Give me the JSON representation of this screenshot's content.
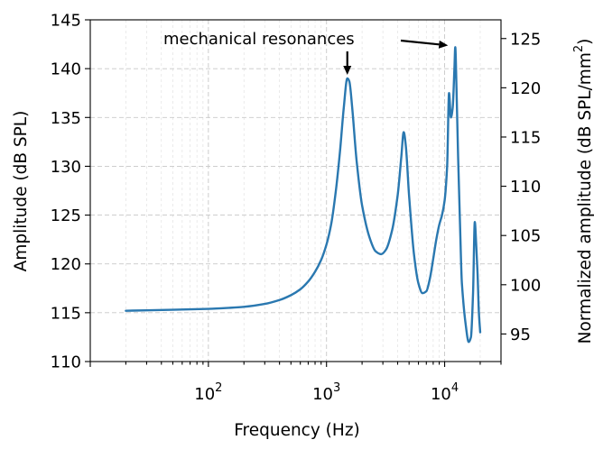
{
  "chart_data": {
    "type": "line",
    "title": "",
    "xlabel": "Frequency (Hz)",
    "ylabel": "Amplitude (dB SPL)",
    "ylabel_right_main": "Normalized amplitude (dB SPL/mm",
    "ylabel_right_sup": "2",
    "ylabel_right_close": ")",
    "x_scale": "log",
    "xlim": [
      10,
      30000
    ],
    "ylim": [
      110,
      145
    ],
    "ylim_right": [
      92.2,
      126.9
    ],
    "grid": true,
    "xticks": [
      {
        "value": 100,
        "base": "10",
        "exp": "2"
      },
      {
        "value": 1000,
        "base": "10",
        "exp": "3"
      },
      {
        "value": 10000,
        "base": "10",
        "exp": "4"
      }
    ],
    "yticks": [
      110,
      115,
      120,
      125,
      130,
      135,
      140,
      145
    ],
    "yticks_right": [
      95,
      100,
      105,
      110,
      115,
      120,
      125
    ],
    "series": [
      {
        "color": "#2a78b0",
        "points": [
          [
            20,
            115.2
          ],
          [
            30,
            115.25
          ],
          [
            50,
            115.3
          ],
          [
            100,
            115.4
          ],
          [
            150,
            115.5
          ],
          [
            200,
            115.6
          ],
          [
            300,
            115.9
          ],
          [
            400,
            116.3
          ],
          [
            500,
            116.8
          ],
          [
            600,
            117.4
          ],
          [
            700,
            118.2
          ],
          [
            800,
            119.2
          ],
          [
            900,
            120.4
          ],
          [
            1000,
            122.0
          ],
          [
            1100,
            124.2
          ],
          [
            1200,
            127.5
          ],
          [
            1300,
            131.5
          ],
          [
            1400,
            136.0
          ],
          [
            1500,
            139.0
          ],
          [
            1560,
            138.7
          ],
          [
            1650,
            136.0
          ],
          [
            1800,
            130.5
          ],
          [
            2000,
            126.0
          ],
          [
            2300,
            122.8
          ],
          [
            2600,
            121.3
          ],
          [
            2900,
            121.0
          ],
          [
            3200,
            121.5
          ],
          [
            3600,
            123.5
          ],
          [
            4000,
            127.0
          ],
          [
            4300,
            131.0
          ],
          [
            4500,
            133.5
          ],
          [
            4700,
            132.0
          ],
          [
            5000,
            127.0
          ],
          [
            5500,
            121.0
          ],
          [
            6000,
            118.0
          ],
          [
            6500,
            117.0
          ],
          [
            7000,
            117.2
          ],
          [
            7500,
            118.5
          ],
          [
            8000,
            120.5
          ],
          [
            8500,
            122.5
          ],
          [
            9000,
            124.0
          ],
          [
            9500,
            125.0
          ],
          [
            10000,
            126.5
          ],
          [
            10500,
            130.0
          ],
          [
            10900,
            137.5
          ],
          [
            11300,
            135.0
          ],
          [
            11700,
            136.0
          ],
          [
            12100,
            140.0
          ],
          [
            12300,
            142.2
          ],
          [
            12600,
            138.0
          ],
          [
            13000,
            131.0
          ],
          [
            13500,
            124.0
          ],
          [
            14000,
            118.0
          ],
          [
            15000,
            114.0
          ],
          [
            16000,
            112.0
          ],
          [
            16700,
            112.5
          ],
          [
            17400,
            117.0
          ],
          [
            18000,
            124.3
          ],
          [
            18500,
            122.0
          ],
          [
            19000,
            119.0
          ],
          [
            19500,
            115.0
          ],
          [
            20000,
            113.0
          ]
        ]
      }
    ],
    "annotations": [
      {
        "text": "mechanical resonances",
        "targets": [
          [
            1500,
            139.0
          ],
          [
            12300,
            142.2
          ]
        ]
      }
    ]
  }
}
